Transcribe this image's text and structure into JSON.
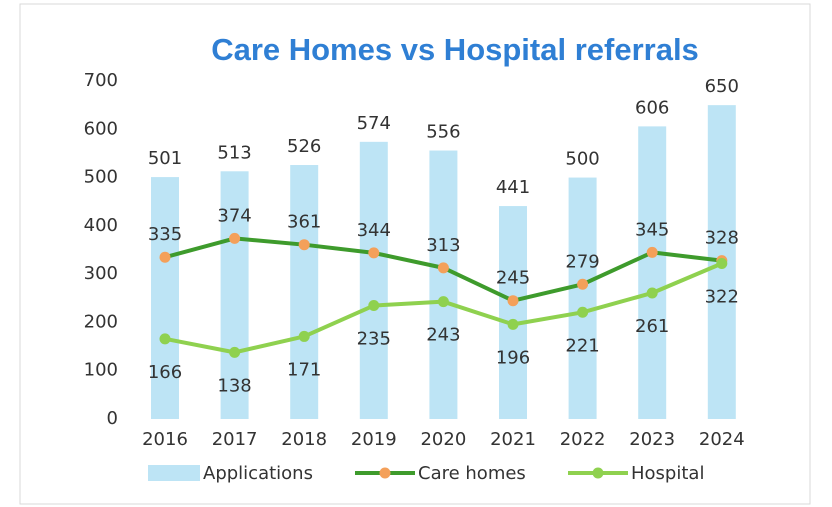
{
  "chart_data": {
    "type": "bar_line",
    "title": "Care Homes vs Hospital referrals",
    "categories": [
      "2016",
      "2017",
      "2018",
      "2019",
      "2020",
      "2021",
      "2022",
      "2023",
      "2024"
    ],
    "series": [
      {
        "name": "Applications",
        "type": "bar",
        "color": "#bde4f5",
        "values": [
          501,
          513,
          526,
          574,
          556,
          441,
          500,
          606,
          650
        ]
      },
      {
        "name": "Care homes",
        "type": "line",
        "color": "#3e9b2c",
        "marker_color": "#f4a05a",
        "values": [
          335,
          374,
          361,
          344,
          313,
          245,
          279,
          345,
          328
        ]
      },
      {
        "name": "Hospital",
        "type": "line",
        "color": "#8fd14f",
        "marker_color": "#8fd14f",
        "values": [
          166,
          138,
          171,
          235,
          243,
          196,
          221,
          261,
          322
        ]
      }
    ],
    "ylim": [
      0,
      700
    ],
    "yticks": [
      0,
      100,
      200,
      300,
      400,
      500,
      600,
      700
    ],
    "grid": false
  }
}
